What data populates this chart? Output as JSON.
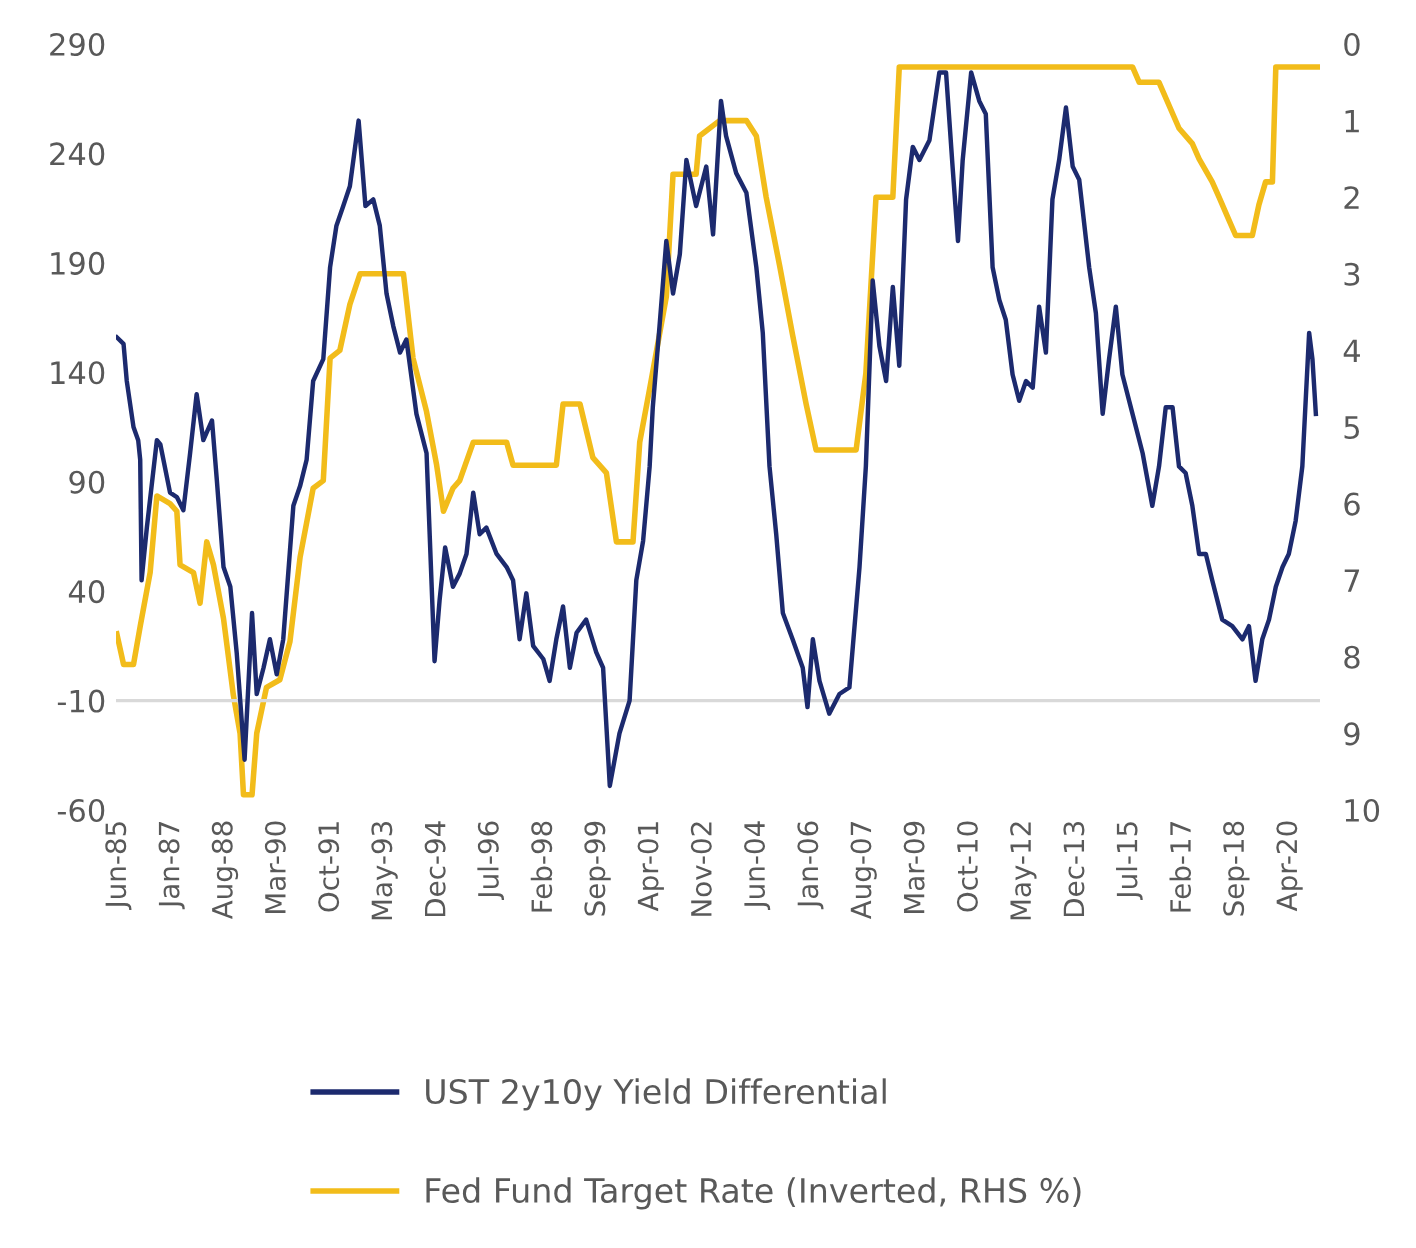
{
  "chart_data": {
    "type": "line",
    "xlim": [
      "1985-05-08",
      "2021-03-01"
    ],
    "xticks": [
      {
        "value": "1985-06",
        "label": "Jun-85"
      },
      {
        "value": "1987-01",
        "label": "Jan-87"
      },
      {
        "value": "1988-08",
        "label": "Aug-88"
      },
      {
        "value": "1990-03",
        "label": "Mar-90"
      },
      {
        "value": "1991-10",
        "label": "Oct-91"
      },
      {
        "value": "1993-05",
        "label": "May-93"
      },
      {
        "value": "1994-12",
        "label": "Dec-94"
      },
      {
        "value": "1996-07",
        "label": "Jul-96"
      },
      {
        "value": "1998-02",
        "label": "Feb-98"
      },
      {
        "value": "1999-09",
        "label": "Sep-99"
      },
      {
        "value": "2001-04",
        "label": "Apr-01"
      },
      {
        "value": "2002-11",
        "label": "Nov-02"
      },
      {
        "value": "2004-06",
        "label": "Jun-04"
      },
      {
        "value": "2006-01",
        "label": "Jan-06"
      },
      {
        "value": "2007-08",
        "label": "Aug-07"
      },
      {
        "value": "2009-03",
        "label": "Mar-09"
      },
      {
        "value": "2010-10",
        "label": "Oct-10"
      },
      {
        "value": "2012-05",
        "label": "May-12"
      },
      {
        "value": "2013-12",
        "label": "Dec-13"
      },
      {
        "value": "2015-07",
        "label": "Jul-15"
      },
      {
        "value": "2017-02",
        "label": "Feb-17"
      },
      {
        "value": "2018-09",
        "label": "Sep-18"
      },
      {
        "value": "2020-04",
        "label": "Apr-20"
      }
    ],
    "ylim": [
      -60,
      290
    ],
    "yticks": [
      -60,
      -10,
      40,
      90,
      140,
      190,
      240,
      290
    ],
    "y2lim": [
      10,
      0
    ],
    "y2ticks": [
      0,
      1,
      2,
      3,
      4,
      5,
      6,
      7,
      8,
      9,
      10
    ],
    "ref_lines": [
      {
        "axis": "y",
        "value": -10,
        "color": "#d9d9d9"
      }
    ],
    "grid": false,
    "legend": "bottom",
    "line_style": "solid",
    "series": [
      {
        "name": "UST 2y10y Yield Differential",
        "color": "#1c2a6e",
        "x": [
          "1985-05-17",
          "1985-07-29",
          "1985-09-02",
          "1985-11-14",
          "1986-01-04",
          "1986-01-26",
          "1986-02-10",
          "1986-04-08",
          "1986-07-26",
          "1986-09-02",
          "1986-12-16",
          "1987-02-28",
          "1987-05-10",
          "1987-07-22",
          "1987-10-01",
          "1987-12-13",
          "1988-03-16",
          "1988-05-07",
          "1988-07-19",
          "1988-10-01",
          "1988-12-09",
          "1989-03-05",
          "1989-05-25",
          "1989-07-15",
          "1989-09-27",
          "1989-12-05",
          "1990-02-17",
          "1990-04-29",
          "1990-08-17",
          "1990-10-29",
          "1991-01-08",
          "1991-03-20",
          "1991-07-08",
          "1991-09-20",
          "1991-11-28",
          "1992-02-10",
          "1992-04-22",
          "1992-07-26",
          "1992-10-08",
          "1993-01-01",
          "1993-03-13",
          "1993-05-25",
          "1993-08-07",
          "1993-10-19",
          "1993-12-27",
          "1994-04-15",
          "1994-08-03",
          "1994-10-29",
          "1994-12-23",
          "1995-02-21",
          "1995-05-17",
          "1995-07-29",
          "1995-10-11",
          "1995-12-23",
          "1996-03-02",
          "1996-05-14",
          "1996-09-02",
          "1996-12-20",
          "1997-02-28",
          "1997-05-10",
          "1997-07-22",
          "1997-10-04",
          "1998-01-22",
          "1998-04-01",
          "1998-06-13",
          "1998-08-25",
          "1998-11-07",
          "1999-01-19",
          "1999-05-03",
          "1999-08-21",
          "1999-11-03",
          "2000-01-15",
          "2000-04-29",
          "2000-08-17",
          "2000-10-29",
          "2001-01-11",
          "2001-03-23",
          "2001-04-26",
          "2001-07-08",
          "2001-09-20",
          "2001-12-02",
          "2002-02-14",
          "2002-04-26",
          "2002-08-10",
          "2002-11-28",
          "2003-02-10",
          "2003-05-07",
          "2003-07-01",
          "2003-10-19",
          "2004-02-07",
          "2004-05-25",
          "2004-08-03",
          "2004-10-15",
          "2004-12-27",
          "2005-03-09",
          "2005-06-23",
          "2005-10-11",
          "2005-12-02",
          "2006-01-29",
          "2006-04-11",
          "2006-07-26",
          "2006-11-14",
          "2007-03-02",
          "2007-06-20",
          "2007-08-28",
          "2007-11-10",
          "2008-01-22",
          "2008-04-04",
          "2008-06-16",
          "2008-08-25",
          "2008-11-07",
          "2009-01-19",
          "2009-04-01",
          "2009-07-19",
          "2009-11-03",
          "2010-01-15",
          "2010-03-27",
          "2010-05-25",
          "2010-07-15",
          "2010-10-15",
          "2011-01-11",
          "2011-03-23",
          "2011-06-05",
          "2011-08-17",
          "2011-10-26",
          "2012-01-08",
          "2012-03-20",
          "2012-06-02",
          "2012-08-14",
          "2012-10-22",
          "2013-01-04",
          "2013-03-16",
          "2013-05-28",
          "2013-08-10",
          "2013-10-22",
          "2014-01-01",
          "2014-04-19",
          "2014-07-01",
          "2014-09-13",
          "2014-11-21",
          "2015-02-03",
          "2015-04-15",
          "2015-08-03",
          "2015-11-21",
          "2016-03-05",
          "2016-05-17",
          "2016-07-29",
          "2016-10-11",
          "2016-12-20",
          "2017-03-02",
          "2017-05-14",
          "2017-07-26",
          "2017-10-08",
          "2017-12-16",
          "2018-04-04",
          "2018-07-22",
          "2018-11-10",
          "2019-01-19",
          "2019-04-01",
          "2019-06-13",
          "2019-08-25",
          "2019-11-07",
          "2020-01-19",
          "2020-03-27",
          "2020-06-09",
          "2020-08-21",
          "2020-11-03",
          "2020-12-09",
          "2021-01-15"
        ],
        "values": [
          156,
          153,
          136,
          115,
          109,
          100,
          45,
          69,
          109,
          107,
          85,
          83,
          77,
          103,
          130,
          109,
          118,
          91,
          51,
          42,
          12,
          -37,
          30,
          -7,
          5,
          18,
          2,
          18,
          79,
          88,
          100,
          136,
          146,
          188,
          207,
          216,
          225,
          255,
          216,
          219,
          207,
          176,
          161,
          149,
          155,
          121,
          103,
          8,
          36,
          60,
          42,
          48,
          57,
          85,
          66,
          69,
          57,
          51,
          45,
          18,
          39,
          15,
          9,
          -1,
          18,
          33,
          5,
          21,
          27,
          12,
          5,
          -49,
          -25,
          -10,
          45,
          63,
          97,
          124,
          161,
          200,
          176,
          194,
          237,
          216,
          234,
          203,
          264,
          248,
          231,
          222,
          188,
          158,
          97,
          66,
          30,
          18,
          5,
          -13,
          18,
          -1,
          -16,
          -7,
          -4,
          51,
          97,
          182,
          152,
          136,
          179,
          143,
          219,
          243,
          237,
          246,
          277,
          277,
          234,
          200,
          237,
          277,
          264,
          258,
          188,
          173,
          164,
          139,
          127,
          136,
          133,
          170,
          149,
          219,
          237,
          261,
          234,
          228,
          188,
          167,
          121,
          146,
          170,
          139,
          121,
          103,
          79,
          97,
          124,
          124,
          97,
          94,
          79,
          57,
          57,
          45,
          27,
          24,
          18,
          24,
          -1,
          18,
          27,
          42,
          51,
          57,
          72,
          97,
          158,
          146,
          121
        ]
      },
      {
        "name": "Fed Fund Target Rate (Inverted, RHS %)",
        "color": "#f2bc1a",
        "axis": "y2",
        "x": [
          "1985-05-17",
          "1985-07-29",
          "1985-11-14",
          "1986-01-26",
          "1986-05-14",
          "1986-07-26",
          "1986-12-16",
          "1987-02-28",
          "1987-04-04",
          "1987-08-28",
          "1987-11-07",
          "1988-01-19",
          "1988-04-01",
          "1988-07-19",
          "1988-11-03",
          "1989-01-15",
          "1989-02-21",
          "1989-05-25",
          "1989-07-15",
          "1989-10-29",
          "1990-03-23",
          "1990-07-11",
          "1990-10-29",
          "1991-03-20",
          "1991-07-08",
          "1991-09-20",
          "1992-01-04",
          "1992-04-22",
          "1992-08-10",
          "1993-11-25",
          "1994-03-09",
          "1994-08-03",
          "1994-11-21",
          "1995-02-03",
          "1995-05-17",
          "1995-07-29",
          "1995-12-23",
          "1996-12-20",
          "1997-02-28",
          "1998-06-13",
          "1998-08-25",
          "1999-02-25",
          "1999-07-15",
          "1999-12-09",
          "2000-03-27",
          "2000-09-23",
          "2000-12-05",
          "2001-03-23",
          "2001-09-20",
          "2001-12-02",
          "2002-08-10",
          "2002-09-16",
          "2003-04-22",
          "2004-02-07",
          "2004-05-25",
          "2004-09-09",
          "2005-02-03",
          "2005-06-23",
          "2005-11-17",
          "2006-03-05",
          "2007-05-14",
          "2007-08-28",
          "2007-12-16",
          "2008-06-16",
          "2008-08-25",
          "2015-08-03",
          "2015-10-15",
          "2016-05-17",
          "2016-12-20",
          "2017-05-14",
          "2017-07-26",
          "2017-12-16",
          "2018-02-28",
          "2018-06-16",
          "2018-08-28",
          "2019-02-25",
          "2019-05-07",
          "2019-07-19",
          "2019-10-01",
          "2019-11-07",
          "2021-02-17"
        ],
        "values": [
          7.7,
          8.1,
          8.1,
          7.6,
          6.9,
          5.9,
          6.0,
          6.1,
          6.8,
          6.9,
          7.3,
          6.5,
          6.8,
          7.5,
          8.5,
          9.0,
          9.8,
          9.8,
          9.0,
          8.4,
          8.3,
          7.8,
          6.7,
          5.8,
          5.7,
          4.1,
          4.0,
          3.4,
          3.0,
          3.0,
          4.1,
          4.8,
          5.5,
          6.1,
          5.8,
          5.7,
          5.2,
          5.2,
          5.5,
          5.5,
          4.7,
          4.7,
          5.4,
          5.6,
          6.5,
          6.5,
          5.2,
          4.5,
          3.3,
          1.7,
          1.7,
          1.2,
          1.0,
          1.0,
          1.2,
          2.0,
          2.9,
          3.8,
          4.7,
          5.3,
          5.3,
          4.3,
          2.0,
          2.0,
          0.3,
          0.3,
          0.5,
          0.5,
          1.1,
          1.3,
          1.5,
          1.8,
          2.0,
          2.3,
          2.5,
          2.5,
          2.1,
          1.8,
          1.8,
          0.3,
          0.3
        ]
      }
    ]
  }
}
